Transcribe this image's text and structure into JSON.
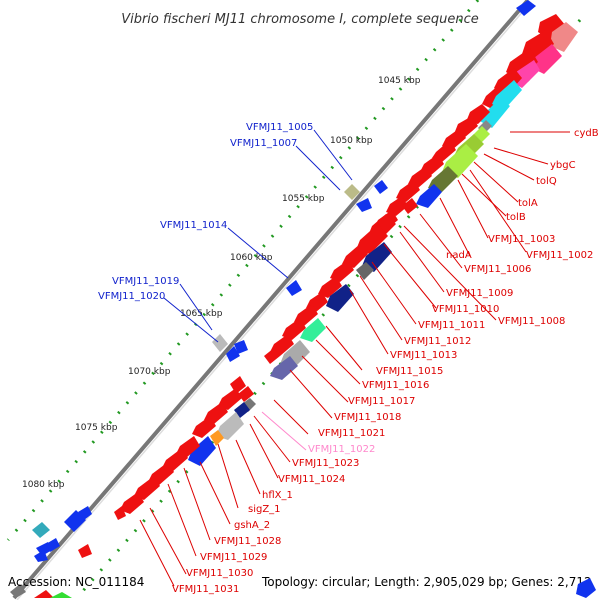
{
  "title": "Vibrio fischeri MJ11 chromosome I, complete sequence",
  "footer": {
    "accession": "Accession: NC_011184",
    "summary": "Topology: circular; Length: 2,905,029 bp; Genes: 2,712"
  },
  "colors": {
    "backbone": "#777777",
    "forward_gene": "#ee1111",
    "reverse_gene": "#1133ee",
    "tick": "#229922",
    "label_red": "#dd0000",
    "label_blue": "#1122cc",
    "label_pink": "#ff88cc"
  },
  "scale_labels": [
    "1045 kbp",
    "1050 kbp",
    "1055 kbp",
    "1060 kbp",
    "1065 kbp",
    "1070 kbp",
    "1075 kbp",
    "1080 kbp"
  ],
  "labels_left": [
    {
      "text": "VFMJ11_1005",
      "color": "#1122cc"
    },
    {
      "text": "VFMJ11_1007",
      "color": "#1122cc"
    },
    {
      "text": "VFMJ11_1014",
      "color": "#1122cc"
    },
    {
      "text": "VFMJ11_1019",
      "color": "#1122cc"
    },
    {
      "text": "VFMJ11_1020",
      "color": "#1122cc"
    }
  ],
  "labels_right": [
    {
      "text": "cydB",
      "color": "#dd0000"
    },
    {
      "text": "ybgC",
      "color": "#dd0000"
    },
    {
      "text": "tolQ",
      "color": "#dd0000"
    },
    {
      "text": "tolA",
      "color": "#dd0000"
    },
    {
      "text": "tolB",
      "color": "#dd0000"
    },
    {
      "text": "VFMJ11_1003",
      "color": "#dd0000"
    },
    {
      "text": "nadA",
      "color": "#dd0000"
    },
    {
      "text": "VFMJ11_1002",
      "color": "#dd0000"
    },
    {
      "text": "VFMJ11_1006",
      "color": "#dd0000"
    },
    {
      "text": "VFMJ11_1009",
      "color": "#dd0000"
    },
    {
      "text": "VFMJ11_1010",
      "color": "#dd0000"
    },
    {
      "text": "VFMJ11_1008",
      "color": "#dd0000"
    },
    {
      "text": "VFMJ11_1011",
      "color": "#dd0000"
    },
    {
      "text": "VFMJ11_1012",
      "color": "#dd0000"
    },
    {
      "text": "VFMJ11_1013",
      "color": "#dd0000"
    },
    {
      "text": "VFMJ11_1015",
      "color": "#dd0000"
    },
    {
      "text": "VFMJ11_1016",
      "color": "#dd0000"
    },
    {
      "text": "VFMJ11_1017",
      "color": "#dd0000"
    },
    {
      "text": "VFMJ11_1018",
      "color": "#dd0000"
    },
    {
      "text": "VFMJ11_1021",
      "color": "#dd0000"
    },
    {
      "text": "VFMJ11_1022",
      "color": "#ff88cc"
    },
    {
      "text": "VFMJ11_1023",
      "color": "#dd0000"
    },
    {
      "text": "VFMJ11_1024",
      "color": "#dd0000"
    },
    {
      "text": "hflX_1",
      "color": "#dd0000"
    },
    {
      "text": "sigZ_1",
      "color": "#dd0000"
    },
    {
      "text": "gshA_2",
      "color": "#dd0000"
    },
    {
      "text": "VFMJ11_1028",
      "color": "#dd0000"
    },
    {
      "text": "VFMJ11_1029",
      "color": "#dd0000"
    },
    {
      "text": "VFMJ11_1030",
      "color": "#dd0000"
    },
    {
      "text": "VFMJ11_1031",
      "color": "#dd0000"
    }
  ]
}
